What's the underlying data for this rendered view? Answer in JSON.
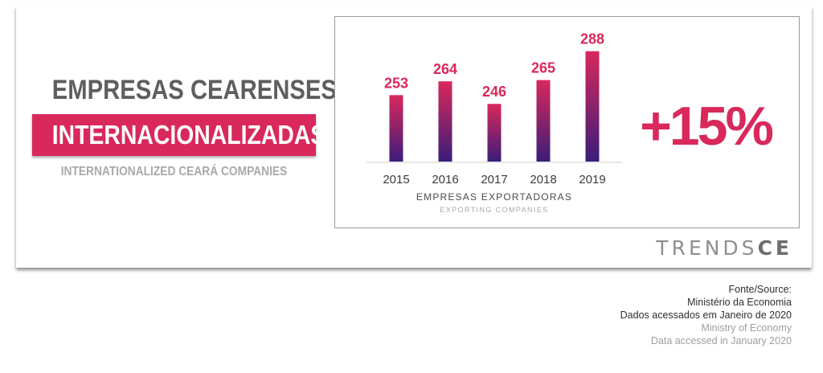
{
  "title": {
    "line1": "EMPRESAS CEARENSES",
    "line2": "INTERNACIONALIZADAS",
    "subtitle": "INTERNATIONALIZED CEARÁ COMPANIES"
  },
  "chart_data": {
    "type": "bar",
    "categories": [
      "2015",
      "2016",
      "2017",
      "2018",
      "2019"
    ],
    "values": [
      253,
      264,
      246,
      265,
      288
    ],
    "xlabel": "EMPRESAS EXPORTADORAS",
    "xlabel_sub": "EXPORTING COMPANIES",
    "ylabel": "",
    "ylim": [
      0,
      300
    ],
    "grid": false,
    "bar_gradient": [
      "#d9285b",
      "#3a1d7a"
    ],
    "value_label_color": "#d9285b"
  },
  "growth_label": "+15%",
  "brand": {
    "light": "TRENDS",
    "bold": "CE"
  },
  "source": {
    "label": "Fonte/Source:",
    "org_pt": "Ministério da Economia",
    "access_pt": "Dados acessados em Janeiro de 2020",
    "org_en": "Ministry of Economy",
    "access_en": "Data accessed in January 2020"
  },
  "colors": {
    "accent": "#d9285b",
    "title_gray": "#5e5e60"
  }
}
